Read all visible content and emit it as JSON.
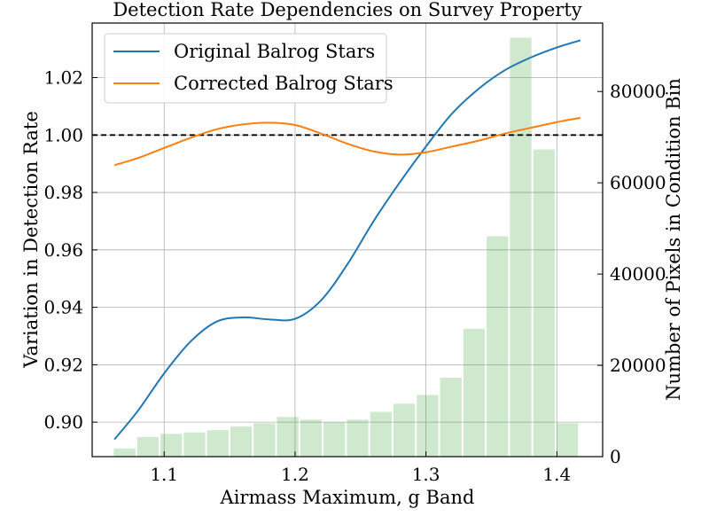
{
  "chart_data": {
    "type": "line",
    "title": "Detection Rate Dependencies on Survey Property",
    "xlabel": "Airmass Maximum, g Band",
    "ylabel": "Variation in Detection Rate",
    "y2label": "Number of Pixels in Condition Bin",
    "xlim": [
      1.045,
      1.435
    ],
    "ylim": [
      0.888,
      1.039
    ],
    "y2lim": [
      0,
      95000
    ],
    "x_ticks": [
      1.1,
      1.2,
      1.3,
      1.4
    ],
    "x_tick_labels": [
      "1.1",
      "1.2",
      "1.3",
      "1.4"
    ],
    "y_ticks": [
      0.9,
      0.92,
      0.94,
      0.96,
      0.98,
      1.0,
      1.02
    ],
    "y_tick_labels": [
      "0.90",
      "0.92",
      "0.94",
      "0.96",
      "0.98",
      "1.00",
      "1.02"
    ],
    "y2_ticks": [
      0,
      20000,
      40000,
      60000,
      80000
    ],
    "y2_tick_labels": [
      "0",
      "20000",
      "40000",
      "60000",
      "80000"
    ],
    "grid": true,
    "legend_position": "upper-left",
    "reference_line": {
      "y": 1.0,
      "style": "dashed",
      "color": "#000000"
    },
    "series": [
      {
        "name": "Original Balrog Stars",
        "color": "#1f77b4",
        "x": [
          1.062,
          1.08,
          1.1,
          1.12,
          1.14,
          1.16,
          1.18,
          1.2,
          1.22,
          1.24,
          1.26,
          1.28,
          1.3,
          1.32,
          1.34,
          1.36,
          1.38,
          1.4,
          1.418
        ],
        "y": [
          0.894,
          0.904,
          0.917,
          0.928,
          0.935,
          0.9365,
          0.9358,
          0.936,
          0.9425,
          0.955,
          0.97,
          0.9835,
          0.996,
          1.0075,
          1.016,
          1.0225,
          1.027,
          1.0305,
          1.033
        ]
      },
      {
        "name": "Corrected Balrog Stars",
        "color": "#ff7f0e",
        "x": [
          1.062,
          1.08,
          1.1,
          1.12,
          1.14,
          1.16,
          1.18,
          1.2,
          1.22,
          1.24,
          1.26,
          1.28,
          1.3,
          1.32,
          1.34,
          1.36,
          1.38,
          1.4,
          1.418
        ],
        "y": [
          0.9895,
          0.992,
          0.9955,
          0.999,
          1.002,
          1.0037,
          1.0043,
          1.0035,
          1.0005,
          0.997,
          0.9943,
          0.9932,
          0.994,
          0.996,
          0.998,
          1.0005,
          1.0025,
          1.0045,
          1.006
        ]
      }
    ],
    "histogram": {
      "name": "Number of Pixels in Condition Bin",
      "color": "#2ca02c",
      "opacity": 0.23,
      "axis": "right",
      "bin_width": 0.0178,
      "bin_centers": [
        1.0698,
        1.0876,
        1.1054,
        1.1232,
        1.141,
        1.1588,
        1.1766,
        1.1944,
        1.2122,
        1.23,
        1.2478,
        1.2656,
        1.2834,
        1.3012,
        1.319,
        1.3368,
        1.3546,
        1.3724,
        1.3902,
        1.408
      ],
      "counts": [
        1800,
        4300,
        5000,
        5300,
        5800,
        6600,
        7300,
        8700,
        8100,
        7500,
        8100,
        9800,
        11600,
        13500,
        17300,
        28000,
        48300,
        91800,
        67300,
        7300
      ]
    }
  }
}
